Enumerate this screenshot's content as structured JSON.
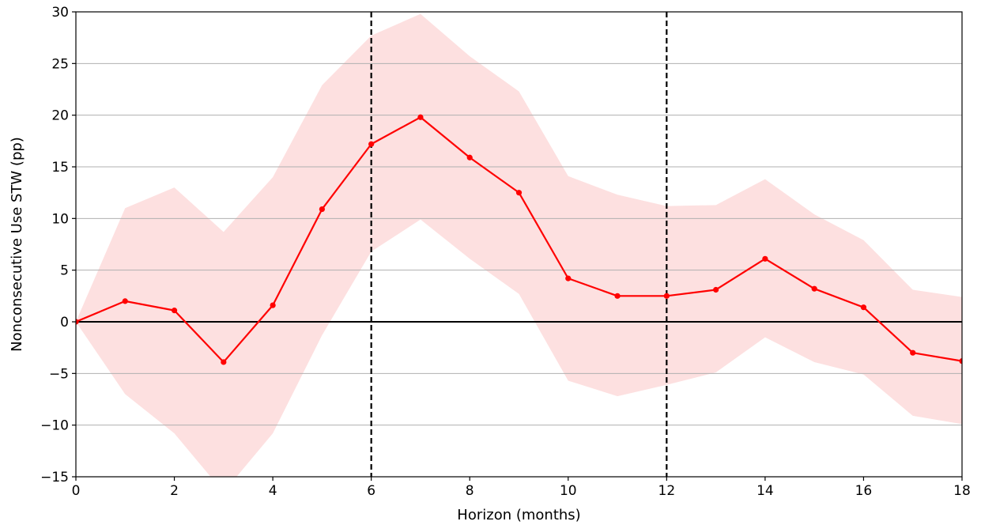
{
  "chart_data": {
    "type": "line",
    "title": "",
    "xlabel": "Horizon (months)",
    "ylabel": "Nonconsecutive Use STW (pp)",
    "xlim": [
      0,
      18
    ],
    "ylim": [
      -15,
      30
    ],
    "x_ticks": [
      0,
      2,
      4,
      6,
      8,
      10,
      12,
      14,
      16,
      18
    ],
    "y_ticks": [
      -15,
      -10,
      -5,
      0,
      5,
      10,
      15,
      20,
      25,
      30
    ],
    "x_tick_labels": [
      "0",
      "2",
      "4",
      "6",
      "8",
      "10",
      "12",
      "14",
      "16",
      "18"
    ],
    "y_tick_labels": [
      "−15",
      "−10",
      "−5",
      "0",
      "5",
      "10",
      "15",
      "20",
      "25",
      "30"
    ],
    "grid": "horizontal",
    "zero_line": 0,
    "vertical_reference_lines": [
      6,
      12
    ],
    "series": [
      {
        "x": [
          0,
          1,
          2,
          3,
          4,
          5,
          6,
          7,
          8,
          9,
          10,
          11,
          12,
          13,
          14,
          15,
          16,
          17,
          18
        ],
        "values": [
          0,
          2.0,
          1.1,
          -3.9,
          1.6,
          10.9,
          17.2,
          19.8,
          15.9,
          12.5,
          4.2,
          2.5,
          2.5,
          3.1,
          6.1,
          3.2,
          1.4,
          -3.0,
          -3.8
        ],
        "lower": [
          0,
          -7.0,
          -10.8,
          -16.5,
          -10.8,
          -1.3,
          6.8,
          9.9,
          6.1,
          2.7,
          -5.7,
          -7.2,
          -6.1,
          -4.9,
          -1.5,
          -3.9,
          -5.1,
          -9.1,
          -9.9
        ],
        "upper": [
          0,
          11.0,
          13.0,
          8.7,
          14.0,
          22.9,
          27.7,
          29.8,
          25.7,
          22.3,
          14.1,
          12.3,
          11.2,
          11.3,
          13.8,
          10.4,
          7.9,
          3.1,
          2.4
        ],
        "color": "#ff0000",
        "band_color": "#fde0e0"
      }
    ]
  }
}
